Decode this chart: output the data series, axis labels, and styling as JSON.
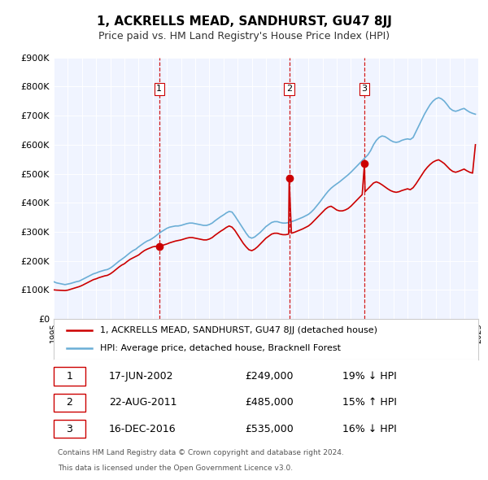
{
  "title": "1, ACKRELLS MEAD, SANDHURST, GU47 8JJ",
  "subtitle": "Price paid vs. HM Land Registry's House Price Index (HPI)",
  "legend_line1": "1, ACKRELLS MEAD, SANDHURST, GU47 8JJ (detached house)",
  "legend_line2": "HPI: Average price, detached house, Bracknell Forest",
  "footer1": "Contains HM Land Registry data © Crown copyright and database right 2024.",
  "footer2": "This data is licensed under the Open Government Licence v3.0.",
  "price_color": "#cc0000",
  "hpi_color": "#6baed6",
  "background_color": "#f0f4ff",
  "plot_bg_color": "#f0f4ff",
  "ylim": [
    0,
    900000
  ],
  "yticks": [
    0,
    100000,
    200000,
    300000,
    400000,
    500000,
    600000,
    700000,
    800000,
    900000
  ],
  "ytick_labels": [
    "£0",
    "£100K",
    "£200K",
    "£300K",
    "£400K",
    "£500K",
    "£600K",
    "£700K",
    "£800K",
    "£900K"
  ],
  "xmin": 1995,
  "xmax": 2025,
  "transactions": [
    {
      "num": 1,
      "date": "17-JUN-2002",
      "price": 249000,
      "pct": "19%",
      "dir": "↓",
      "year": 2002.46
    },
    {
      "num": 2,
      "date": "22-AUG-2011",
      "price": 485000,
      "pct": "15%",
      "dir": "↑",
      "year": 2011.64
    },
    {
      "num": 3,
      "date": "16-DEC-2016",
      "price": 535000,
      "pct": "16%",
      "dir": "↓",
      "year": 2016.96
    }
  ],
  "hpi_data": [
    [
      1995.0,
      128000
    ],
    [
      1995.2,
      124000
    ],
    [
      1995.4,
      122000
    ],
    [
      1995.6,
      120000
    ],
    [
      1995.8,
      118000
    ],
    [
      1996.0,
      120000
    ],
    [
      1996.2,
      122000
    ],
    [
      1996.4,
      125000
    ],
    [
      1996.6,
      128000
    ],
    [
      1996.8,
      130000
    ],
    [
      1997.0,
      135000
    ],
    [
      1997.2,
      140000
    ],
    [
      1997.4,
      145000
    ],
    [
      1997.6,
      150000
    ],
    [
      1997.8,
      155000
    ],
    [
      1998.0,
      158000
    ],
    [
      1998.2,
      162000
    ],
    [
      1998.4,
      165000
    ],
    [
      1998.6,
      168000
    ],
    [
      1998.8,
      170000
    ],
    [
      1999.0,
      175000
    ],
    [
      1999.2,
      182000
    ],
    [
      1999.4,
      190000
    ],
    [
      1999.6,
      198000
    ],
    [
      1999.8,
      205000
    ],
    [
      2000.0,
      212000
    ],
    [
      2000.2,
      220000
    ],
    [
      2000.4,
      228000
    ],
    [
      2000.6,
      235000
    ],
    [
      2000.8,
      240000
    ],
    [
      2001.0,
      248000
    ],
    [
      2001.2,
      255000
    ],
    [
      2001.4,
      262000
    ],
    [
      2001.6,
      268000
    ],
    [
      2001.8,
      272000
    ],
    [
      2002.0,
      278000
    ],
    [
      2002.2,
      285000
    ],
    [
      2002.4,
      293000
    ],
    [
      2002.6,
      300000
    ],
    [
      2002.8,
      306000
    ],
    [
      2003.0,
      312000
    ],
    [
      2003.2,
      316000
    ],
    [
      2003.4,
      318000
    ],
    [
      2003.6,
      320000
    ],
    [
      2003.8,
      320000
    ],
    [
      2004.0,
      322000
    ],
    [
      2004.2,
      325000
    ],
    [
      2004.4,
      328000
    ],
    [
      2004.6,
      330000
    ],
    [
      2004.8,
      330000
    ],
    [
      2005.0,
      328000
    ],
    [
      2005.2,
      326000
    ],
    [
      2005.4,
      324000
    ],
    [
      2005.6,
      322000
    ],
    [
      2005.8,
      322000
    ],
    [
      2006.0,
      325000
    ],
    [
      2006.2,
      330000
    ],
    [
      2006.4,
      338000
    ],
    [
      2006.6,
      345000
    ],
    [
      2006.8,
      352000
    ],
    [
      2007.0,
      358000
    ],
    [
      2007.2,
      365000
    ],
    [
      2007.4,
      370000
    ],
    [
      2007.6,
      368000
    ],
    [
      2007.8,
      355000
    ],
    [
      2008.0,
      340000
    ],
    [
      2008.2,
      325000
    ],
    [
      2008.4,
      310000
    ],
    [
      2008.6,
      295000
    ],
    [
      2008.8,
      282000
    ],
    [
      2009.0,
      278000
    ],
    [
      2009.2,
      282000
    ],
    [
      2009.4,
      290000
    ],
    [
      2009.6,
      298000
    ],
    [
      2009.8,
      308000
    ],
    [
      2010.0,
      318000
    ],
    [
      2010.2,
      325000
    ],
    [
      2010.4,
      332000
    ],
    [
      2010.6,
      335000
    ],
    [
      2010.8,
      335000
    ],
    [
      2011.0,
      332000
    ],
    [
      2011.2,
      330000
    ],
    [
      2011.4,
      330000
    ],
    [
      2011.6,
      332000
    ],
    [
      2011.8,
      335000
    ],
    [
      2012.0,
      338000
    ],
    [
      2012.2,
      342000
    ],
    [
      2012.4,
      346000
    ],
    [
      2012.6,
      350000
    ],
    [
      2012.8,
      355000
    ],
    [
      2013.0,
      360000
    ],
    [
      2013.2,
      368000
    ],
    [
      2013.4,
      378000
    ],
    [
      2013.6,
      390000
    ],
    [
      2013.8,
      402000
    ],
    [
      2014.0,
      415000
    ],
    [
      2014.2,
      428000
    ],
    [
      2014.4,
      440000
    ],
    [
      2014.6,
      450000
    ],
    [
      2014.8,
      458000
    ],
    [
      2015.0,
      465000
    ],
    [
      2015.2,
      472000
    ],
    [
      2015.4,
      480000
    ],
    [
      2015.6,
      488000
    ],
    [
      2015.8,
      496000
    ],
    [
      2016.0,
      505000
    ],
    [
      2016.2,
      515000
    ],
    [
      2016.4,
      525000
    ],
    [
      2016.6,
      535000
    ],
    [
      2016.8,
      545000
    ],
    [
      2017.0,
      555000
    ],
    [
      2017.2,
      565000
    ],
    [
      2017.4,
      580000
    ],
    [
      2017.6,
      600000
    ],
    [
      2017.8,
      615000
    ],
    [
      2018.0,
      625000
    ],
    [
      2018.2,
      630000
    ],
    [
      2018.4,
      628000
    ],
    [
      2018.6,
      622000
    ],
    [
      2018.8,
      615000
    ],
    [
      2019.0,
      610000
    ],
    [
      2019.2,
      608000
    ],
    [
      2019.4,
      610000
    ],
    [
      2019.6,
      615000
    ],
    [
      2019.8,
      618000
    ],
    [
      2020.0,
      620000
    ],
    [
      2020.2,
      618000
    ],
    [
      2020.4,
      625000
    ],
    [
      2020.6,
      645000
    ],
    [
      2020.8,
      665000
    ],
    [
      2021.0,
      685000
    ],
    [
      2021.2,
      705000
    ],
    [
      2021.4,
      722000
    ],
    [
      2021.6,
      738000
    ],
    [
      2021.8,
      750000
    ],
    [
      2022.0,
      758000
    ],
    [
      2022.2,
      762000
    ],
    [
      2022.4,
      758000
    ],
    [
      2022.6,
      750000
    ],
    [
      2022.8,
      738000
    ],
    [
      2023.0,
      725000
    ],
    [
      2023.2,
      718000
    ],
    [
      2023.4,
      715000
    ],
    [
      2023.6,
      718000
    ],
    [
      2023.8,
      722000
    ],
    [
      2024.0,
      725000
    ],
    [
      2024.2,
      718000
    ],
    [
      2024.4,
      712000
    ],
    [
      2024.6,
      708000
    ],
    [
      2024.8,
      705000
    ]
  ],
  "price_data": [
    [
      1995.0,
      100000
    ],
    [
      1995.2,
      99000
    ],
    [
      1995.4,
      98500
    ],
    [
      1995.6,
      98000
    ],
    [
      1995.8,
      97500
    ],
    [
      1996.0,
      99000
    ],
    [
      1996.2,
      102000
    ],
    [
      1996.4,
      105000
    ],
    [
      1996.6,
      108000
    ],
    [
      1996.8,
      111000
    ],
    [
      1997.0,
      115000
    ],
    [
      1997.2,
      120000
    ],
    [
      1997.4,
      125000
    ],
    [
      1997.6,
      130000
    ],
    [
      1997.8,
      135000
    ],
    [
      1998.0,
      138000
    ],
    [
      1998.2,
      142000
    ],
    [
      1998.4,
      145000
    ],
    [
      1998.6,
      148000
    ],
    [
      1998.8,
      150000
    ],
    [
      1999.0,
      155000
    ],
    [
      1999.2,
      162000
    ],
    [
      1999.4,
      170000
    ],
    [
      1999.6,
      178000
    ],
    [
      1999.8,
      185000
    ],
    [
      2000.0,
      190000
    ],
    [
      2000.2,
      198000
    ],
    [
      2000.4,
      205000
    ],
    [
      2000.6,
      210000
    ],
    [
      2000.8,
      215000
    ],
    [
      2001.0,
      220000
    ],
    [
      2001.2,
      228000
    ],
    [
      2001.4,
      235000
    ],
    [
      2001.6,
      240000
    ],
    [
      2001.8,
      244000
    ],
    [
      2002.0,
      248000
    ],
    [
      2002.2,
      250000
    ],
    [
      2002.46,
      249000
    ],
    [
      2002.6,
      252000
    ],
    [
      2002.8,
      255000
    ],
    [
      2003.0,
      258000
    ],
    [
      2003.2,
      262000
    ],
    [
      2003.4,
      265000
    ],
    [
      2003.6,
      268000
    ],
    [
      2003.8,
      270000
    ],
    [
      2004.0,
      272000
    ],
    [
      2004.2,
      275000
    ],
    [
      2004.4,
      278000
    ],
    [
      2004.6,
      280000
    ],
    [
      2004.8,
      280000
    ],
    [
      2005.0,
      278000
    ],
    [
      2005.2,
      276000
    ],
    [
      2005.4,
      274000
    ],
    [
      2005.6,
      272000
    ],
    [
      2005.8,
      272000
    ],
    [
      2006.0,
      275000
    ],
    [
      2006.2,
      280000
    ],
    [
      2006.4,
      288000
    ],
    [
      2006.6,
      295000
    ],
    [
      2006.8,
      302000
    ],
    [
      2007.0,
      308000
    ],
    [
      2007.2,
      315000
    ],
    [
      2007.4,
      320000
    ],
    [
      2007.6,
      316000
    ],
    [
      2007.8,
      305000
    ],
    [
      2008.0,
      290000
    ],
    [
      2008.2,
      275000
    ],
    [
      2008.4,
      260000
    ],
    [
      2008.6,
      248000
    ],
    [
      2008.8,
      238000
    ],
    [
      2009.0,
      235000
    ],
    [
      2009.2,
      240000
    ],
    [
      2009.4,
      248000
    ],
    [
      2009.6,
      258000
    ],
    [
      2009.8,
      268000
    ],
    [
      2010.0,
      278000
    ],
    [
      2010.2,
      285000
    ],
    [
      2010.4,
      292000
    ],
    [
      2010.6,
      295000
    ],
    [
      2010.8,
      295000
    ],
    [
      2011.0,
      292000
    ],
    [
      2011.2,
      290000
    ],
    [
      2011.4,
      290000
    ],
    [
      2011.6,
      292000
    ],
    [
      2011.64,
      485000
    ],
    [
      2011.8,
      295000
    ],
    [
      2012.0,
      298000
    ],
    [
      2012.2,
      302000
    ],
    [
      2012.4,
      306000
    ],
    [
      2012.6,
      310000
    ],
    [
      2012.8,
      315000
    ],
    [
      2013.0,
      320000
    ],
    [
      2013.2,
      328000
    ],
    [
      2013.4,
      338000
    ],
    [
      2013.6,
      348000
    ],
    [
      2013.8,
      358000
    ],
    [
      2014.0,
      368000
    ],
    [
      2014.2,
      378000
    ],
    [
      2014.4,
      385000
    ],
    [
      2014.6,
      388000
    ],
    [
      2014.8,
      382000
    ],
    [
      2015.0,
      375000
    ],
    [
      2015.2,
      372000
    ],
    [
      2015.4,
      372000
    ],
    [
      2015.6,
      375000
    ],
    [
      2015.8,
      380000
    ],
    [
      2016.0,
      388000
    ],
    [
      2016.2,
      398000
    ],
    [
      2016.4,
      408000
    ],
    [
      2016.6,
      418000
    ],
    [
      2016.8,
      428000
    ],
    [
      2016.96,
      535000
    ],
    [
      2017.0,
      438000
    ],
    [
      2017.2,
      448000
    ],
    [
      2017.4,
      458000
    ],
    [
      2017.6,
      468000
    ],
    [
      2017.8,
      472000
    ],
    [
      2018.0,
      468000
    ],
    [
      2018.2,
      462000
    ],
    [
      2018.4,
      455000
    ],
    [
      2018.6,
      448000
    ],
    [
      2018.8,
      442000
    ],
    [
      2019.0,
      438000
    ],
    [
      2019.2,
      436000
    ],
    [
      2019.4,
      438000
    ],
    [
      2019.6,
      442000
    ],
    [
      2019.8,
      445000
    ],
    [
      2020.0,
      448000
    ],
    [
      2020.2,
      445000
    ],
    [
      2020.4,
      452000
    ],
    [
      2020.6,
      465000
    ],
    [
      2020.8,
      480000
    ],
    [
      2021.0,
      495000
    ],
    [
      2021.2,
      510000
    ],
    [
      2021.4,
      522000
    ],
    [
      2021.6,
      532000
    ],
    [
      2021.8,
      540000
    ],
    [
      2022.0,
      545000
    ],
    [
      2022.2,
      548000
    ],
    [
      2022.4,
      542000
    ],
    [
      2022.6,
      535000
    ],
    [
      2022.8,
      525000
    ],
    [
      2023.0,
      515000
    ],
    [
      2023.2,
      508000
    ],
    [
      2023.4,
      505000
    ],
    [
      2023.6,
      508000
    ],
    [
      2023.8,
      512000
    ],
    [
      2024.0,
      516000
    ],
    [
      2024.2,
      510000
    ],
    [
      2024.4,
      505000
    ],
    [
      2024.6,
      502000
    ],
    [
      2024.8,
      600000
    ]
  ]
}
